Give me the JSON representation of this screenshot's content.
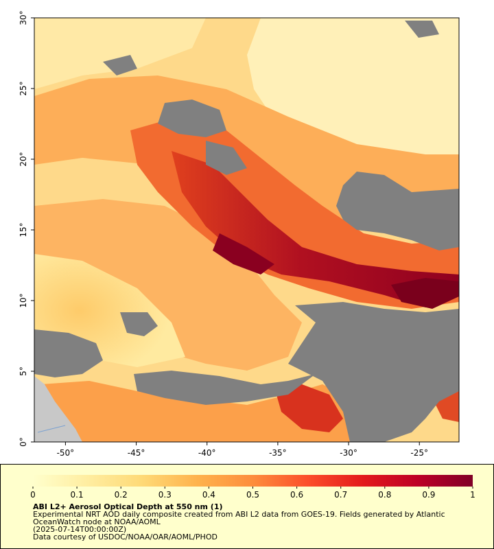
{
  "map": {
    "lon_ticks": [
      "-50°",
      "-45°",
      "-40°",
      "-35°",
      "-30°",
      "-25°"
    ],
    "lat_ticks": [
      "0°",
      "5°",
      "10°",
      "15°",
      "20°",
      "25°",
      "30°"
    ],
    "lon_range": [
      -52.2,
      -22.2
    ],
    "lat_range": [
      0,
      30
    ],
    "no_data_color": "#808080",
    "land_color": "#c8c8c8",
    "ocean_outline_color": "#7aa0d0"
  },
  "colorbar": {
    "labels": [
      "0",
      "0.1",
      "0.2",
      "0.3",
      "0.4",
      "0.5",
      "0.6",
      "0.7",
      "0.8",
      "0.9",
      "1"
    ],
    "range": [
      0,
      1
    ],
    "colors": [
      "#ffffcc",
      "#ffeda0",
      "#fed976",
      "#feb24c",
      "#fd8d3c",
      "#fc4e2a",
      "#e31a1c",
      "#bd0026",
      "#800026"
    ]
  },
  "legend": {
    "title": "ABI L2+ Aerosol Optical Depth at 550 nm (1)",
    "description": "Experimental NRT AOD daily composite created from ABI L2 data from GOES-19. Fields generated by Atlantic OceanWatch node at NOAA/AOML",
    "time": "(2025-07-14T00:00:00Z)",
    "credit": "Data courtesy of USDOC/NOAA/OAR/AOML/PHOD"
  }
}
